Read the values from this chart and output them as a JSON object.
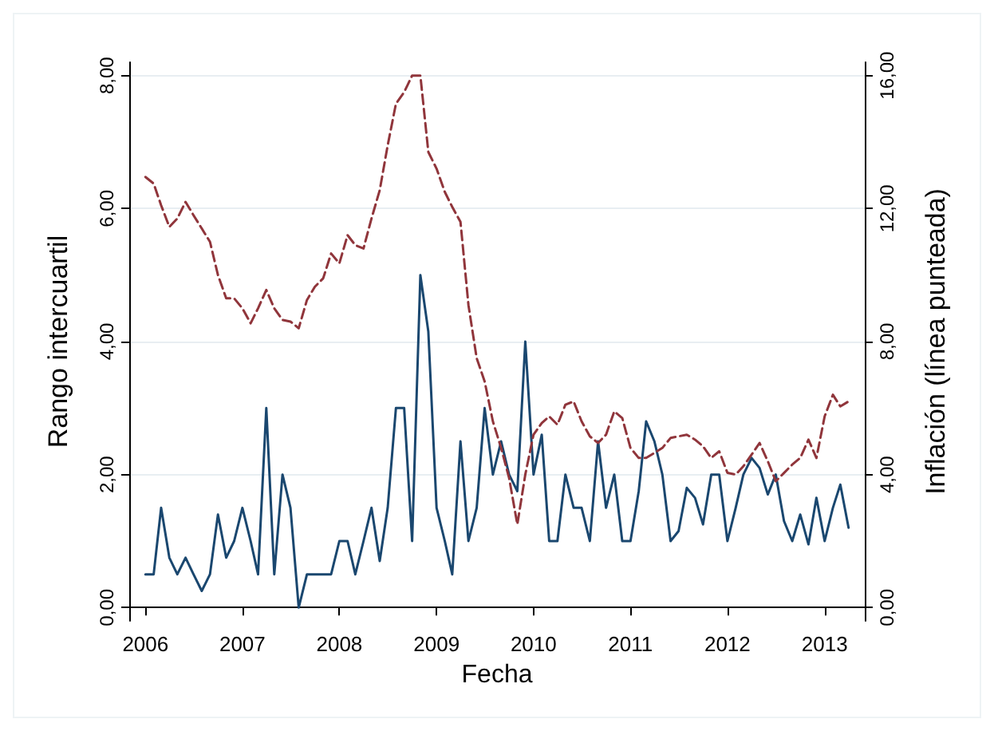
{
  "chart_data": {
    "type": "line",
    "xlabel": "Fecha",
    "ylabel": "Rango intercuartil",
    "y2label": "Inflación (línea punteada)",
    "x": [
      "2006-01",
      "2006-02",
      "2006-03",
      "2006-04",
      "2006-05",
      "2006-06",
      "2006-07",
      "2006-08",
      "2006-09",
      "2006-10",
      "2006-11",
      "2006-12",
      "2007-01",
      "2007-02",
      "2007-03",
      "2007-04",
      "2007-05",
      "2007-06",
      "2007-07",
      "2007-08",
      "2007-09",
      "2007-10",
      "2007-11",
      "2007-12",
      "2008-01",
      "2008-02",
      "2008-03",
      "2008-04",
      "2008-05",
      "2008-06",
      "2008-07",
      "2008-08",
      "2008-09",
      "2008-10",
      "2008-11",
      "2008-12",
      "2009-01",
      "2009-02",
      "2009-03",
      "2009-04",
      "2009-05",
      "2009-06",
      "2009-07",
      "2009-08",
      "2009-09",
      "2009-10",
      "2009-11",
      "2009-12",
      "2010-01",
      "2010-02",
      "2010-03",
      "2010-04",
      "2010-05",
      "2010-06",
      "2010-07",
      "2010-08",
      "2010-09",
      "2010-10",
      "2010-11",
      "2010-12",
      "2011-01",
      "2011-02",
      "2011-03",
      "2011-04",
      "2011-05",
      "2011-06",
      "2011-07",
      "2011-08",
      "2011-09",
      "2011-10",
      "2011-11",
      "2011-12",
      "2012-01",
      "2012-02",
      "2012-03",
      "2012-04",
      "2012-05",
      "2012-06",
      "2012-07",
      "2012-08",
      "2012-09",
      "2012-10",
      "2012-11",
      "2012-12",
      "2013-01",
      "2013-02",
      "2013-03",
      "2013-04"
    ],
    "series": [
      {
        "color": "#1a476f",
        "line_style": "solid",
        "values": [
          0.5,
          0.5,
          1.5,
          0.75,
          0.5,
          0.75,
          0.5,
          0.25,
          0.5,
          1.4,
          0.75,
          1.0,
          1.5,
          1.0,
          0.5,
          3.0,
          0.5,
          2.0,
          1.5,
          0.0,
          0.5,
          0.5,
          0.5,
          0.5,
          1.0,
          1.0,
          0.5,
          1.0,
          1.5,
          0.7,
          1.5,
          3.0,
          3.0,
          1.0,
          5.0,
          4.15,
          1.5,
          1.0,
          0.5,
          2.5,
          1.0,
          1.5,
          3.0,
          2.0,
          2.5,
          2.0,
          1.75,
          4.0,
          2.0,
          2.6,
          1.0,
          1.0,
          2.0,
          1.5,
          1.5,
          1.0,
          2.5,
          1.5,
          2.0,
          1.0,
          1.0,
          1.75,
          2.8,
          2.5,
          2.0,
          1.0,
          1.15,
          1.8,
          1.65,
          1.25,
          2.0,
          2.0,
          1.0,
          1.5,
          2.0,
          2.25,
          2.1,
          1.7,
          2.0,
          1.3,
          1.0,
          1.4,
          0.95,
          1.65,
          1.0,
          1.5,
          1.85,
          1.2
        ]
      },
      {
        "color": "#90353b",
        "line_style": "dashed",
        "axis": "y2",
        "values": [
          12.95,
          12.75,
          12.1,
          11.45,
          11.7,
          12.2,
          11.8,
          11.4,
          11.0,
          10.0,
          9.3,
          9.3,
          9.0,
          8.55,
          9.0,
          9.55,
          9.0,
          8.65,
          8.6,
          8.4,
          9.25,
          9.65,
          9.9,
          10.65,
          10.35,
          11.2,
          10.9,
          10.8,
          11.7,
          12.55,
          13.9,
          15.15,
          15.5,
          16.0,
          16.0,
          13.7,
          13.2,
          12.5,
          12.05,
          11.6,
          9.1,
          7.5,
          6.8,
          5.6,
          4.8,
          3.9,
          2.5,
          4.0,
          5.2,
          5.55,
          5.75,
          5.5,
          6.1,
          6.2,
          5.6,
          5.15,
          4.95,
          5.2,
          5.9,
          5.7,
          4.8,
          4.5,
          4.5,
          4.65,
          4.8,
          5.1,
          5.15,
          5.2,
          5.05,
          4.85,
          4.5,
          4.7,
          4.05,
          4.0,
          4.25,
          4.6,
          4.95,
          4.4,
          3.8,
          4.05,
          4.3,
          4.5,
          5.05,
          4.5,
          5.75,
          6.4,
          6.05,
          6.2
        ]
      }
    ],
    "xlim": [
      "2005-11",
      "2013-06"
    ],
    "xticks": [
      "2006",
      "2007",
      "2008",
      "2009",
      "2010",
      "2011",
      "2012",
      "2013"
    ],
    "ylim": [
      -0.2,
      8.2
    ],
    "yticks": [
      {
        "value": 0,
        "label": "0,00"
      },
      {
        "value": 2,
        "label": "2,00"
      },
      {
        "value": 4,
        "label": "4,00"
      },
      {
        "value": 6,
        "label": "6,00"
      },
      {
        "value": 8,
        "label": "8,00"
      }
    ],
    "y2lim": [
      -0.4,
      16.4
    ],
    "y2ticks": [
      {
        "value": 0,
        "label": "0,00"
      },
      {
        "value": 4,
        "label": "4,00"
      },
      {
        "value": 8,
        "label": "8,00"
      },
      {
        "value": 12,
        "label": "12,00"
      },
      {
        "value": 16,
        "label": "16,00"
      }
    ],
    "grid": "y"
  }
}
